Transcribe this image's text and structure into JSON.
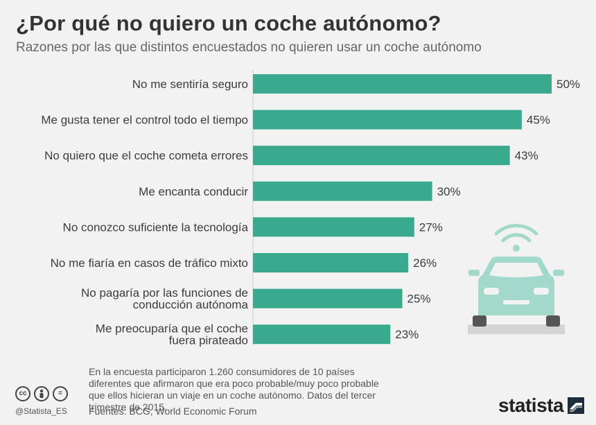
{
  "title": "¿Por qué no quiero un coche autónomo?",
  "subtitle": "Razones por las que distintos encuestados no quieren usar un coche autónomo",
  "chart_data": {
    "type": "bar",
    "orientation": "horizontal",
    "categories": [
      [
        "No me sentiría seguro"
      ],
      [
        "Me gusta tener el control todo el tiempo"
      ],
      [
        "No quiero que el coche cometa errores"
      ],
      [
        "Me encanta conducir"
      ],
      [
        "No conozco suficiente la tecnología"
      ],
      [
        "No me fiaría en casos de tráfico mixto"
      ],
      [
        "No pagaría por las funciones de",
        "conducción autónoma"
      ],
      [
        "Me preocuparía que el coche",
        "fuera pirateado"
      ]
    ],
    "values": [
      50,
      45,
      43,
      30,
      27,
      26,
      25,
      23
    ],
    "value_labels": [
      "50%",
      "45%",
      "43%",
      "30%",
      "27%",
      "26%",
      "25%",
      "23%"
    ],
    "bar_color": "#3aaa8e",
    "xlim": [
      0,
      50
    ],
    "grid": false
  },
  "footer": {
    "note": "En la encuesta participaron 1.260 consumidores de 10 países diferentes que afirmaron que era poco probable/muy poco probable que ellos hicieran un viaje en un coche autónomo. Datos del tercer trimestre de 2015.",
    "source": "Fuentes: BCG, World Economic Forum",
    "handle": "@Statista_ES",
    "license_icons": [
      "cc-icon",
      "attribution-icon",
      "no-derivatives-icon"
    ],
    "cc_text": "cc",
    "nd_text": "="
  },
  "brand": {
    "name": "statista"
  },
  "illustration": {
    "icon": "autonomous-car-icon",
    "color": "#a3d9cb",
    "road_color": "#d4d4d4"
  }
}
